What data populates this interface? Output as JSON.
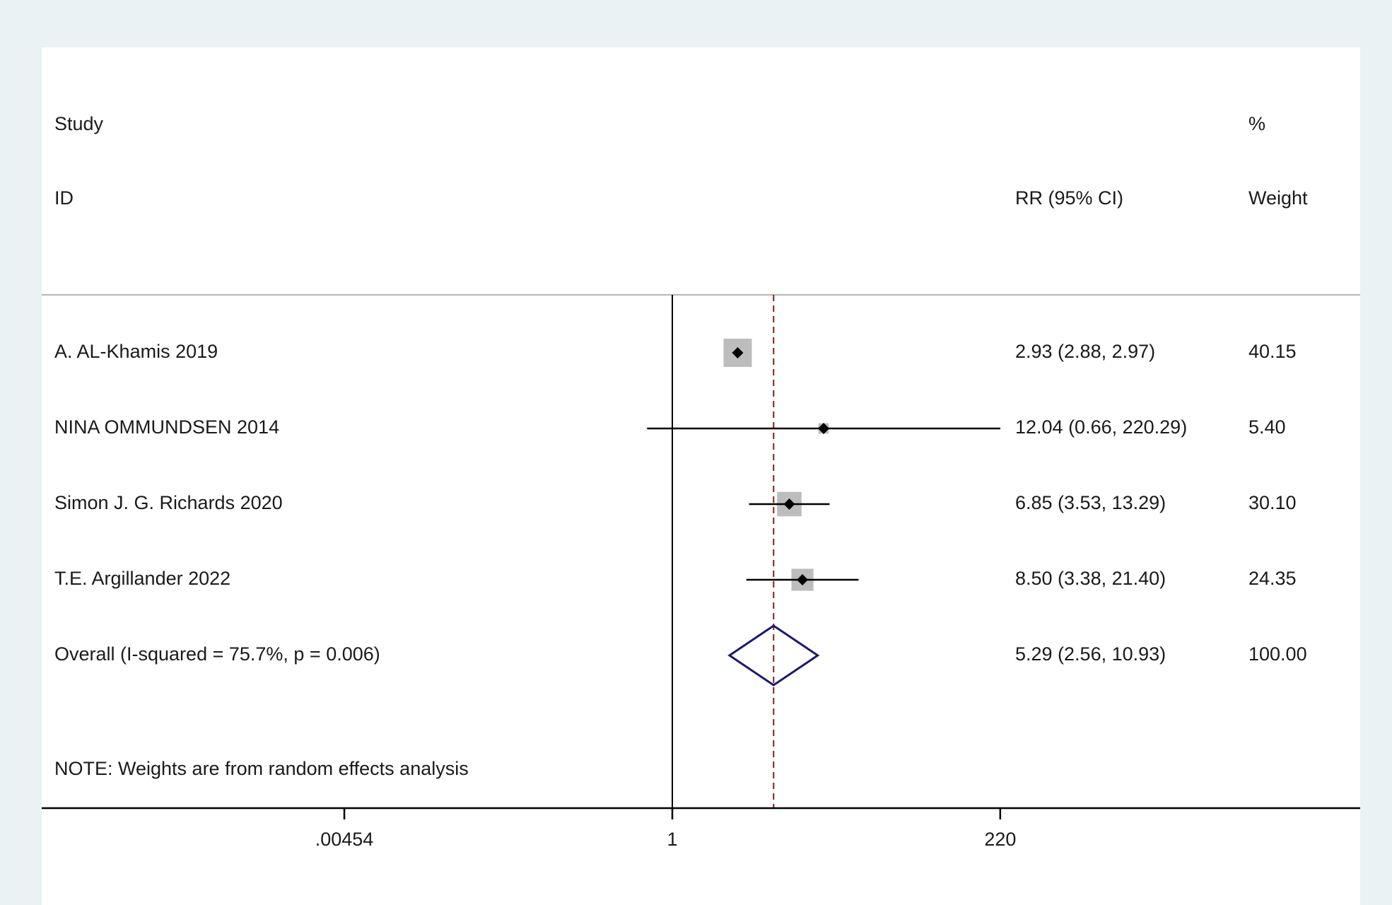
{
  "chart_data": {
    "type": "forest",
    "x_scale": "log",
    "x_ticks": [
      {
        "value": 0.00454,
        "label": ".00454"
      },
      {
        "value": 1,
        "label": "1"
      },
      {
        "value": 220,
        "label": "220"
      }
    ],
    "x_axis_range": [
      0.00454,
      220
    ],
    "headers": {
      "study_line1": "Study",
      "study_line2": "ID",
      "effect": "RR (95% CI)",
      "weight_line1": "%",
      "weight_line2": "Weight"
    },
    "studies": [
      {
        "label": "A. AL-Khamis 2019",
        "rr": 2.93,
        "lower": 2.88,
        "upper": 2.97,
        "weight": 40.15,
        "rr_text": "2.93 (2.88, 2.97)",
        "weight_text": "40.15"
      },
      {
        "label": "NINA OMMUNDSEN 2014",
        "rr": 12.04,
        "lower": 0.66,
        "upper": 220.29,
        "weight": 5.4,
        "rr_text": "12.04 (0.66, 220.29)",
        "weight_text": "5.40"
      },
      {
        "label": "Simon J. G. Richards 2020",
        "rr": 6.85,
        "lower": 3.53,
        "upper": 13.29,
        "weight": 30.1,
        "rr_text": "6.85 (3.53, 13.29)",
        "weight_text": "30.10"
      },
      {
        "label": "T.E. Argillander 2022",
        "rr": 8.5,
        "lower": 3.38,
        "upper": 21.4,
        "weight": 24.35,
        "rr_text": "8.50 (3.38, 21.40)",
        "weight_text": "24.35"
      }
    ],
    "overall": {
      "label": "Overall  (I-squared = 75.7%, p = 0.006)",
      "rr": 5.29,
      "lower": 2.56,
      "upper": 10.93,
      "rr_text": "5.29 (2.56, 10.93)",
      "weight_text": "100.00"
    },
    "note": "NOTE: Weights are from random effects analysis",
    "colors": {
      "background": "#eaf2f3",
      "weight_box": "#bdbdbd",
      "diamond_outline": "#1a1a6e",
      "reference_line": "#8b1a1a",
      "text": "#1a1a1a"
    }
  }
}
